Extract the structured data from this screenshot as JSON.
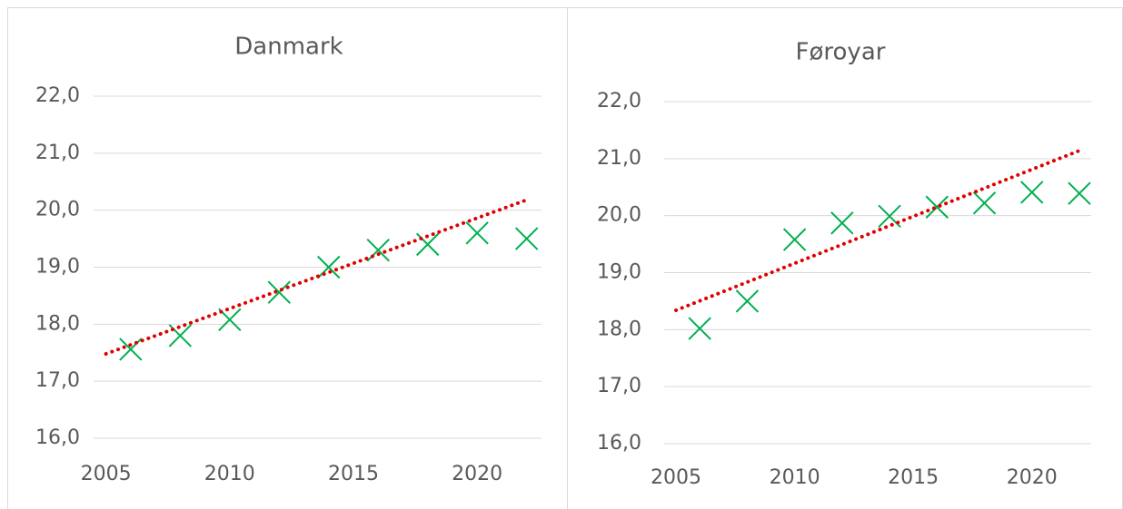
{
  "chart_data": [
    {
      "type": "scatter",
      "title": "Danmark",
      "series": [
        {
          "color": "#00b050",
          "x": [
            2006,
            2008,
            2010,
            2012,
            2014,
            2016,
            2018,
            2020,
            2022
          ],
          "values": [
            17.56,
            17.8,
            18.08,
            18.56,
            19.0,
            19.3,
            19.4,
            19.6,
            19.5
          ]
        }
      ],
      "trendline": {
        "color": "#e00000",
        "x": [
          2005,
          2022
        ],
        "values": [
          17.48,
          20.18
        ]
      },
      "xlim": [
        2004.5,
        2022.6
      ],
      "xticks": [
        2005,
        2010,
        2015,
        2020
      ],
      "ylim": [
        16,
        22
      ],
      "yticks": [
        {
          "value": 16,
          "label": "16,0"
        },
        {
          "value": 17,
          "label": "17,0"
        },
        {
          "value": 18,
          "label": "18,0"
        },
        {
          "value": 19,
          "label": "19,0"
        },
        {
          "value": 20,
          "label": "20,0"
        },
        {
          "value": 21,
          "label": "21,0"
        },
        {
          "value": 22,
          "label": "22,0"
        }
      ],
      "grid": true
    },
    {
      "type": "scatter",
      "title": "Føroyar",
      "series": [
        {
          "color": "#00b050",
          "x": [
            2006,
            2008,
            2010,
            2012,
            2014,
            2016,
            2018,
            2020,
            2022
          ],
          "values": [
            18.02,
            18.5,
            19.58,
            19.87,
            19.99,
            20.15,
            20.22,
            20.41,
            20.39
          ]
        }
      ],
      "trendline": {
        "color": "#e00000",
        "x": [
          2005,
          2022
        ],
        "values": [
          18.34,
          21.14
        ]
      },
      "xlim": [
        2004.5,
        2022.5
      ],
      "xticks": [
        2005,
        2010,
        2015,
        2020
      ],
      "ylim": [
        16,
        22
      ],
      "yticks": [
        {
          "value": 16,
          "label": "16,0"
        },
        {
          "value": 17,
          "label": "17,0"
        },
        {
          "value": 18,
          "label": "18,0"
        },
        {
          "value": 19,
          "label": "19,0"
        },
        {
          "value": 20,
          "label": "20,0"
        },
        {
          "value": 21,
          "label": "21,0"
        },
        {
          "value": 22,
          "label": "22,0"
        }
      ],
      "grid": true
    }
  ]
}
